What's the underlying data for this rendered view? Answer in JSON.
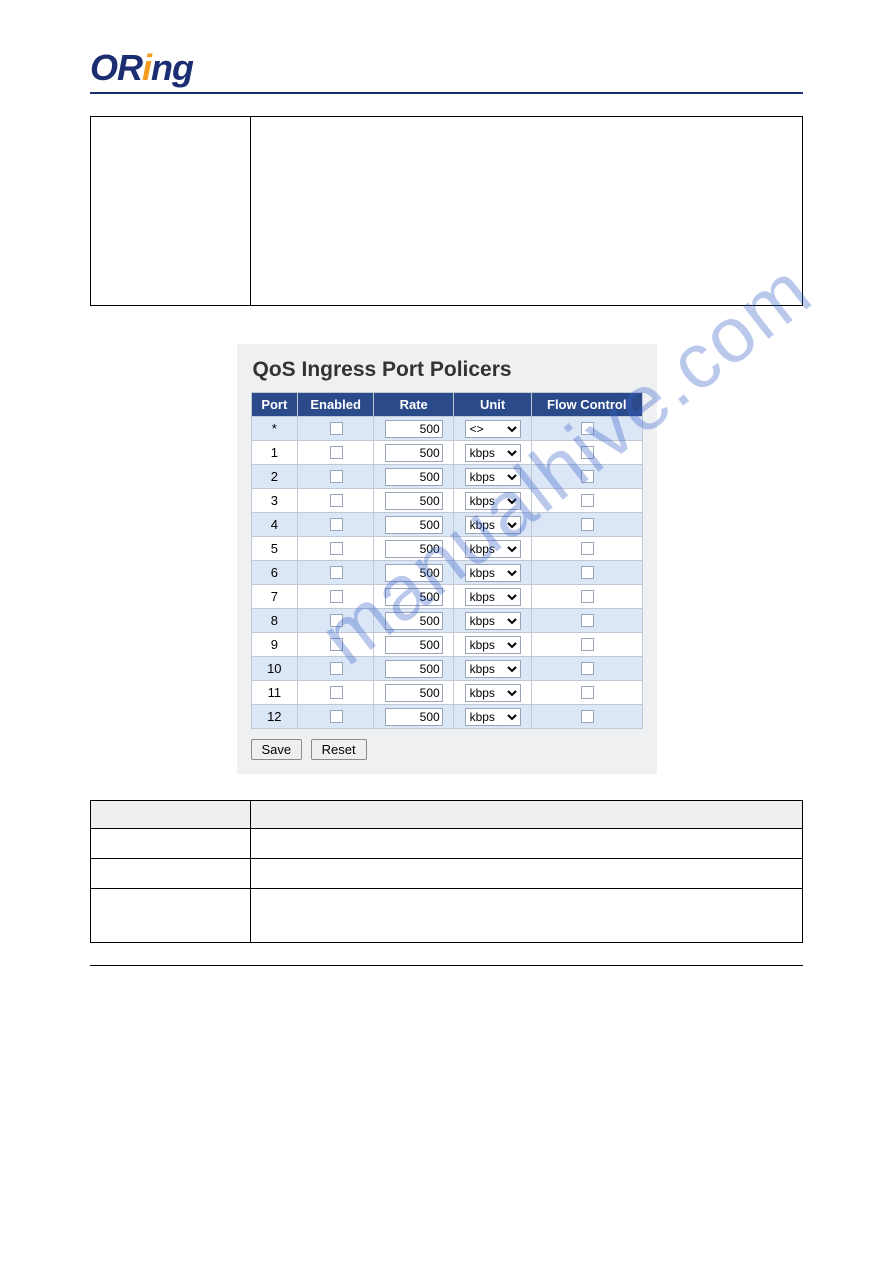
{
  "logo": {
    "part1": "OR",
    "part2": "i",
    "part3": "ng"
  },
  "watermark": "manualhive.com",
  "screenshot": {
    "title": "QoS Ingress Port Policers",
    "columns": [
      "Port",
      "Enabled",
      "Rate",
      "Unit",
      "Flow Control"
    ],
    "rows": [
      {
        "port": "*",
        "rate": "500",
        "unit": "<>"
      },
      {
        "port": "1",
        "rate": "500",
        "unit": "kbps"
      },
      {
        "port": "2",
        "rate": "500",
        "unit": "kbps"
      },
      {
        "port": "3",
        "rate": "500",
        "unit": "kbps"
      },
      {
        "port": "4",
        "rate": "500",
        "unit": "kbps"
      },
      {
        "port": "5",
        "rate": "500",
        "unit": "kbps"
      },
      {
        "port": "6",
        "rate": "500",
        "unit": "kbps"
      },
      {
        "port": "7",
        "rate": "500",
        "unit": "kbps"
      },
      {
        "port": "8",
        "rate": "500",
        "unit": "kbps"
      },
      {
        "port": "9",
        "rate": "500",
        "unit": "kbps"
      },
      {
        "port": "10",
        "rate": "500",
        "unit": "kbps"
      },
      {
        "port": "11",
        "rate": "500",
        "unit": "kbps"
      },
      {
        "port": "12",
        "rate": "500",
        "unit": "kbps"
      }
    ],
    "buttons": {
      "save": "Save",
      "reset": "Reset"
    },
    "colors": {
      "header_bg": "#2a4a8a",
      "header_fg": "#ffffff",
      "row_light": "#ffffff",
      "row_dark": "#dbe6f7",
      "panel_bg": "#eef0f2",
      "border": "#c3c9d4"
    }
  }
}
